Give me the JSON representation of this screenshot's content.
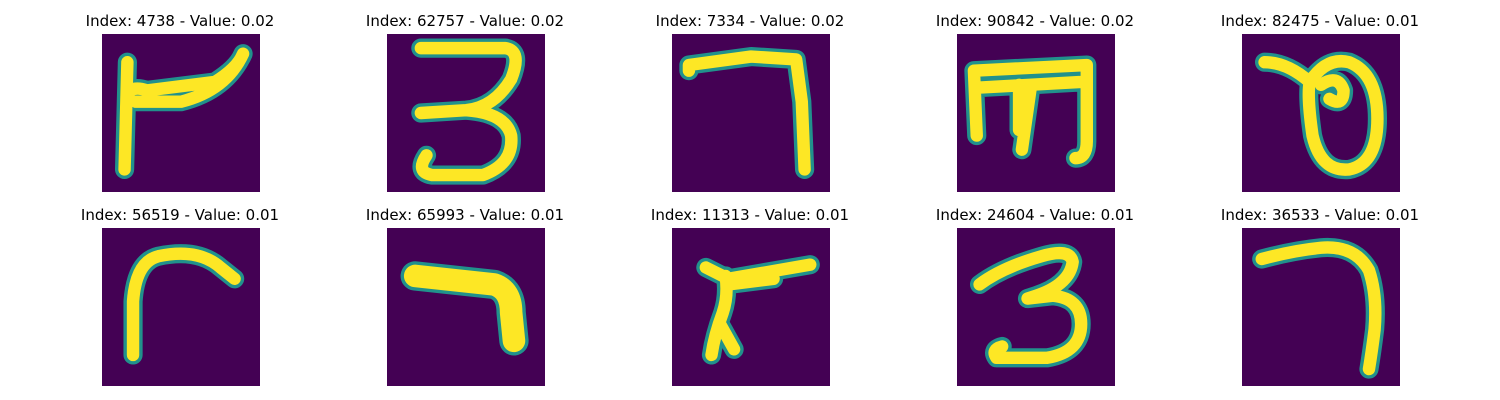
{
  "panels": [
    {
      "title": "Index: 4738 - Value: 0.02",
      "glyph": "flag-stroke"
    },
    {
      "title": "Index: 62757 - Value: 0.02",
      "glyph": "three-shape"
    },
    {
      "title": "Index: 7334 - Value: 0.02",
      "glyph": "seven-shape"
    },
    {
      "title": "Index: 90842 - Value: 0.02",
      "glyph": "m-shape"
    },
    {
      "title": "Index: 82475 - Value: 0.01",
      "glyph": "looped-shape"
    },
    {
      "title": "Index: 56519 - Value: 0.01",
      "glyph": "r-shape"
    },
    {
      "title": "Index: 65993 - Value: 0.01",
      "glyph": "boomerang-shape"
    },
    {
      "title": "Index: 11313 - Value: 0.01",
      "glyph": "slanted-r-shape"
    },
    {
      "title": "Index: 24604 - Value: 0.01",
      "glyph": "three-shape"
    },
    {
      "title": "Index: 36533 - Value: 0.01",
      "glyph": "hook-shape"
    }
  ],
  "colors": {
    "background": "#440154",
    "stroke": "#fde725",
    "edge": "#21918c"
  }
}
